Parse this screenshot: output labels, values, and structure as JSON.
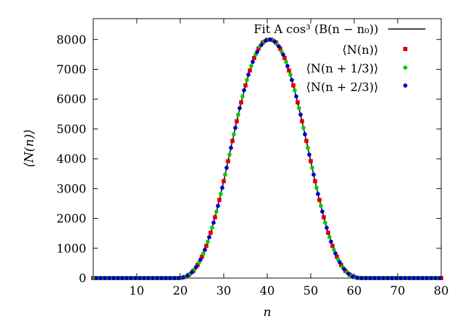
{
  "chart_data": {
    "type": "scatter",
    "xlabel": "n",
    "ylabel": "⟨N(n)⟩",
    "xlim": [
      0,
      80
    ],
    "ylim": [
      0,
      8700
    ],
    "xticks": [
      10,
      20,
      30,
      40,
      50,
      60,
      70,
      80
    ],
    "yticks": [
      0,
      1000,
      2000,
      3000,
      4000,
      5000,
      6000,
      7000,
      8000
    ],
    "grid": false,
    "legend_position": "top-right",
    "fit": {
      "label": "Fit A cos³ (B(n − n₀))",
      "color": "#000000",
      "A": 7980,
      "B": 0.0743,
      "n0": 40.5,
      "support": [
        19.4,
        61.6
      ],
      "note": "samples of the fitted curve at integer n",
      "x": [
        0,
        5,
        10,
        15,
        17,
        18,
        19,
        20,
        21,
        22,
        23,
        24,
        25,
        26,
        27,
        28,
        29,
        30,
        31,
        32,
        33,
        34,
        35,
        36,
        37,
        38,
        39,
        40,
        41,
        42,
        43,
        44,
        45,
        46,
        47,
        48,
        49,
        50,
        51,
        52,
        53,
        54,
        55,
        56,
        57,
        58,
        59,
        60,
        61,
        62,
        63,
        65,
        70,
        75,
        80
      ],
      "y": [
        0,
        0,
        0,
        0,
        0,
        0,
        0,
        5,
        35,
        110,
        240,
        440,
        720,
        1080,
        1520,
        2040,
        2620,
        3250,
        3920,
        4600,
        5260,
        5890,
        6460,
        6960,
        7380,
        7690,
        7900,
        7990,
        7990,
        7900,
        7690,
        7380,
        6960,
        6460,
        5890,
        5260,
        4600,
        3920,
        3250,
        2620,
        2040,
        1520,
        1080,
        720,
        440,
        240,
        110,
        35,
        5,
        0,
        0,
        0,
        0,
        0,
        0
      ]
    },
    "series": [
      {
        "name": "⟨N(n)⟩",
        "color": "#dd0000",
        "marker": "square",
        "x": [
          0,
          1,
          2,
          3,
          4,
          5,
          6,
          7,
          8,
          9,
          10,
          11,
          12,
          13,
          14,
          15,
          16,
          17,
          18,
          19,
          20,
          21,
          22,
          23,
          24,
          25,
          26,
          27,
          28,
          29,
          30,
          31,
          32,
          33,
          34,
          35,
          36,
          37,
          38,
          39,
          40,
          41,
          42,
          43,
          44,
          45,
          46,
          47,
          48,
          49,
          50,
          51,
          52,
          53,
          54,
          55,
          56,
          57,
          58,
          59,
          60,
          61,
          62,
          63,
          64,
          65,
          66,
          67,
          68,
          69,
          70,
          71,
          72,
          73,
          74,
          75,
          76,
          77,
          78,
          79,
          80
        ],
        "y": [
          0,
          0,
          0,
          0,
          0,
          0,
          0,
          0,
          0,
          0,
          0,
          0,
          0,
          0,
          0,
          0,
          0,
          0,
          0,
          0,
          5,
          35,
          110,
          240,
          440,
          720,
          1080,
          1520,
          2040,
          2620,
          3250,
          3920,
          4600,
          5260,
          5890,
          6460,
          6960,
          7380,
          7690,
          7900,
          7990,
          7990,
          7900,
          7690,
          7380,
          6960,
          6460,
          5890,
          5260,
          4600,
          3920,
          3250,
          2620,
          2040,
          1520,
          1080,
          720,
          440,
          240,
          110,
          35,
          5,
          0,
          0,
          0,
          0,
          0,
          0,
          0,
          0,
          0,
          0,
          0,
          0,
          0,
          0,
          0,
          0,
          0,
          0,
          0
        ]
      },
      {
        "name": "⟨N(n + 1/3)⟩",
        "color": "#00cc00",
        "marker": "circle",
        "x": [
          0.33,
          1.33,
          2.33,
          3.33,
          4.33,
          5.33,
          6.33,
          7.33,
          8.33,
          9.33,
          10.33,
          11.33,
          12.33,
          13.33,
          14.33,
          15.33,
          16.33,
          17.33,
          18.33,
          19.33,
          20.33,
          21.33,
          22.33,
          23.33,
          24.33,
          25.33,
          26.33,
          27.33,
          28.33,
          29.33,
          30.33,
          31.33,
          32.33,
          33.33,
          34.33,
          35.33,
          36.33,
          37.33,
          38.33,
          39.33,
          40.33,
          41.33,
          42.33,
          43.33,
          44.33,
          45.33,
          46.33,
          47.33,
          48.33,
          49.33,
          50.33,
          51.33,
          52.33,
          53.33,
          54.33,
          55.33,
          56.33,
          57.33,
          58.33,
          59.33,
          60.33,
          61.33,
          62.33,
          63.33,
          64.33,
          65.33,
          66.33,
          67.33,
          68.33,
          69.33,
          70.33,
          71.33,
          72.33,
          73.33,
          74.33,
          75.33,
          76.33,
          77.33,
          78.33,
          79.33
        ],
        "y": [
          0,
          0,
          0,
          0,
          0,
          0,
          0,
          0,
          0,
          0,
          0,
          0,
          0,
          0,
          0,
          0,
          0,
          0,
          0,
          0,
          12,
          55,
          150,
          300,
          530,
          830,
          1220,
          1690,
          2230,
          2820,
          3470,
          4140,
          4820,
          5480,
          6090,
          6640,
          7110,
          7490,
          7770,
          7940,
          8000,
          7960,
          7820,
          7580,
          7250,
          6820,
          6300,
          5700,
          5040,
          4370,
          3700,
          3030,
          2420,
          1860,
          1370,
          950,
          620,
          370,
          190,
          80,
          20,
          2,
          0,
          0,
          0,
          0,
          0,
          0,
          0,
          0,
          0,
          0,
          0,
          0,
          0,
          0,
          0,
          0,
          0,
          0
        ]
      },
      {
        "name": "⟨N(n + 2/3)⟩",
        "color": "#0000cc",
        "marker": "circle",
        "x": [
          0.67,
          1.67,
          2.67,
          3.67,
          4.67,
          5.67,
          6.67,
          7.67,
          8.67,
          9.67,
          10.67,
          11.67,
          12.67,
          13.67,
          14.67,
          15.67,
          16.67,
          17.67,
          18.67,
          19.67,
          20.67,
          21.67,
          22.67,
          23.67,
          24.67,
          25.67,
          26.67,
          27.67,
          28.67,
          29.67,
          30.67,
          31.67,
          32.67,
          33.67,
          34.67,
          35.67,
          36.67,
          37.67,
          38.67,
          39.67,
          40.67,
          41.67,
          42.67,
          43.67,
          44.67,
          45.67,
          46.67,
          47.67,
          48.67,
          49.67,
          50.67,
          51.67,
          52.67,
          53.67,
          54.67,
          55.67,
          56.67,
          57.67,
          58.67,
          59.67,
          60.67,
          61.67,
          62.67,
          63.67,
          64.67,
          65.67,
          66.67,
          67.67,
          68.67,
          69.67,
          70.67,
          71.67,
          72.67,
          73.67,
          74.67,
          75.67,
          76.67,
          77.67,
          78.67,
          79.67
        ],
        "y": [
          0,
          0,
          0,
          0,
          0,
          0,
          0,
          0,
          0,
          0,
          0,
          0,
          0,
          0,
          0,
          0,
          0,
          0,
          0,
          0,
          20,
          80,
          190,
          370,
          620,
          950,
          1370,
          1860,
          2420,
          3030,
          3700,
          4370,
          5040,
          5700,
          6300,
          6820,
          7250,
          7580,
          7820,
          7960,
          8000,
          7940,
          7770,
          7490,
          7110,
          6640,
          6090,
          5480,
          4820,
          4140,
          3470,
          2820,
          2230,
          1690,
          1220,
          830,
          530,
          300,
          150,
          55,
          12,
          0,
          0,
          0,
          0,
          0,
          0,
          0,
          0,
          0,
          0,
          0,
          0,
          0,
          0,
          0,
          0,
          0,
          0,
          0
        ]
      }
    ]
  }
}
